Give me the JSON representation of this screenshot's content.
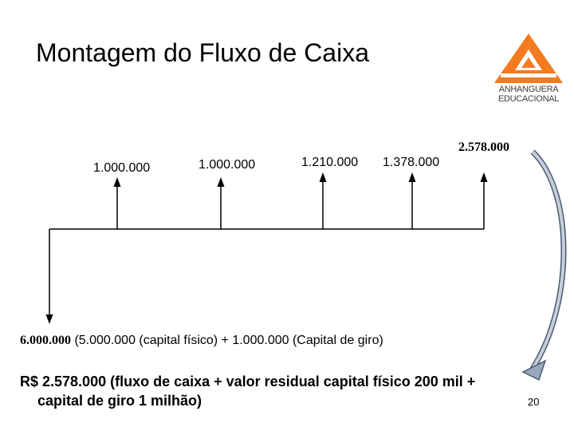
{
  "slide": {
    "title": "Montagem do Fluxo de Caixa",
    "page_number": "20",
    "logo": {
      "line1": "ANHANGUERA",
      "line2": "EDUCACIONAL",
      "colors": {
        "orange": "#F47B20",
        "text": "#404040"
      }
    }
  },
  "diagram": {
    "inflows": [
      "1.000.000",
      "1.000.000",
      "1.210.000",
      "1.378.000",
      "2.578.000"
    ],
    "outflow_value": "6.000.000",
    "outflow_detail": "(5.000.000 (capital físico) + 1.000.000 (Capital de giro)"
  },
  "summary": {
    "line1": "R$ 2.578.000 (fluxo de caixa + valor residual capital físico 200 mil +",
    "line2": "capital de giro 1 milhão)"
  },
  "colors": {
    "arrow_curve": "#7F8FA6",
    "arrow_outline": "#4B5A70"
  }
}
